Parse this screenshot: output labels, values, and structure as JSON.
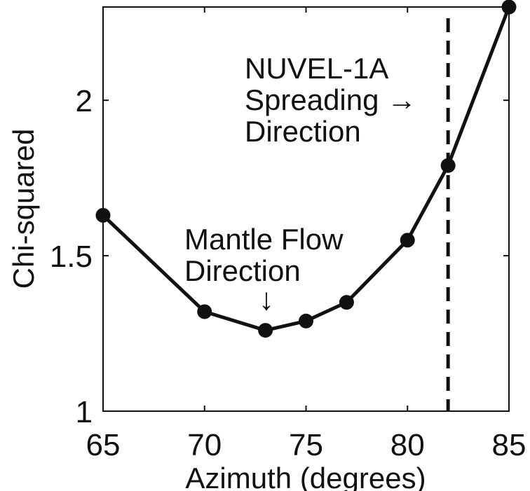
{
  "chart_data": {
    "type": "line",
    "title": "",
    "xlabel": "Azimuth (degrees)",
    "ylabel": "Chi-squared",
    "xlim": [
      65,
      85
    ],
    "ylim": [
      1,
      2.3
    ],
    "xticks": [
      65,
      70,
      75,
      80,
      85
    ],
    "xtick_labels": [
      "65",
      "70",
      "75",
      "80",
      "85"
    ],
    "yticks": [
      1,
      1.5,
      2
    ],
    "ytick_labels": [
      "1",
      "1.5",
      "2"
    ],
    "grid": false,
    "legend": "none",
    "series": [
      {
        "x": [
          65,
          70,
          73,
          75,
          77,
          80,
          82,
          85
        ],
        "y": [
          1.63,
          1.32,
          1.26,
          1.29,
          1.35,
          1.55,
          1.79,
          2.3
        ],
        "color": "#111111",
        "marker": "circle"
      }
    ],
    "vertical_reference_line": {
      "x": 82,
      "style": "dashed",
      "color": "#111111"
    },
    "annotations": [
      {
        "lines": [
          "NUVEL-1A",
          "Spreading →",
          "Direction"
        ]
      },
      {
        "lines": [
          "Mantle Flow",
          "Direction"
        ],
        "arrow": "↓"
      }
    ]
  }
}
